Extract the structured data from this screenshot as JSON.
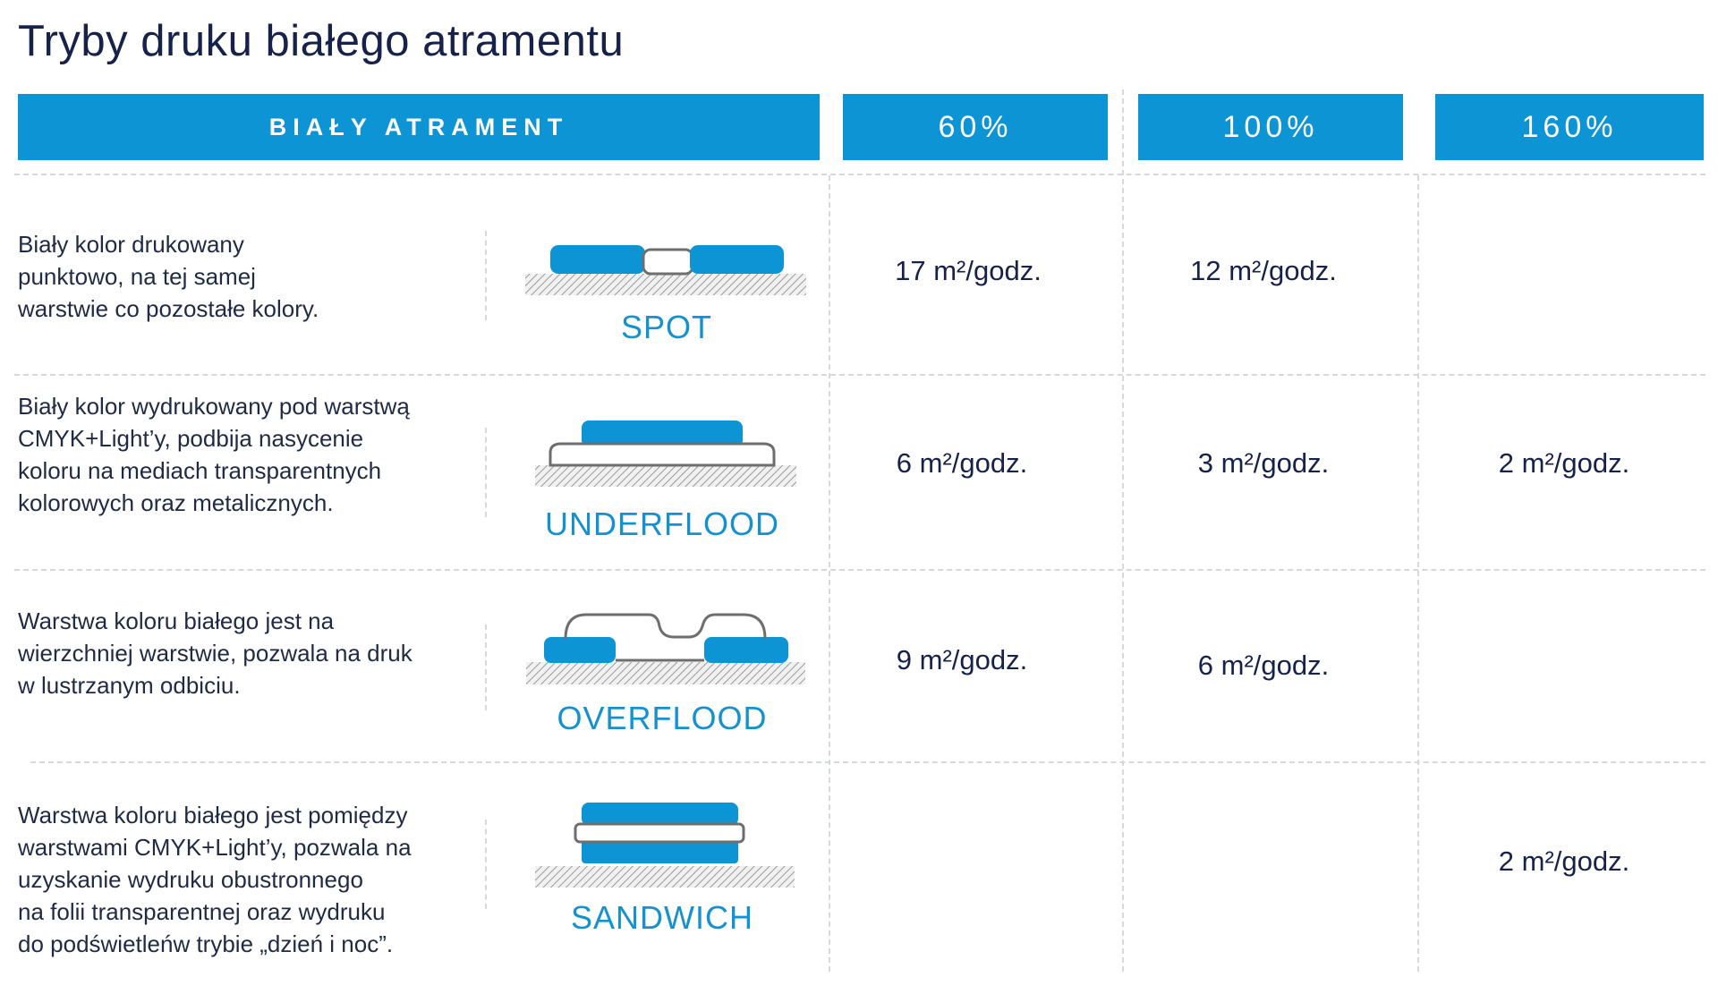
{
  "title": "Tryby druku białego atramentu",
  "header": {
    "main_label": "BIAŁY ATRAMENT",
    "columns": [
      "60%",
      "100%",
      "160%"
    ]
  },
  "rows": [
    {
      "mode": "SPOT",
      "description": [
        "Biały kolor drukowany",
        "punktowo, na tej samej",
        "warstwie co pozostałe kolory."
      ],
      "speeds": [
        "17 m²/godz.",
        "12 m²/godz.",
        ""
      ]
    },
    {
      "mode": "UNDERFLOOD",
      "description": [
        "Biały kolor wydrukowany pod warstwą",
        "CMYK+Light’y, podbija nasycenie",
        "koloru na mediach transparentnych",
        "kolorowych oraz metalicznych."
      ],
      "speeds": [
        "6 m²/godz.",
        "3 m²/godz.",
        "2 m²/godz."
      ]
    },
    {
      "mode": "OVERFLOOD",
      "description": [
        "Warstwa koloru białego jest na",
        "wierzchniej warstwie, pozwala na druk",
        "w lustrzanym odbiciu."
      ],
      "speeds": [
        "9 m²/godz.",
        "6 m²/godz.",
        ""
      ]
    },
    {
      "mode": "SANDWICH",
      "description": [
        "Warstwa koloru białego jest pomiędzy",
        "warstwami CMYK+Light’y, pozwala na",
        "uzyskanie wydruku obustronnego",
        "na folii transparentnej oraz wydruku",
        "do podświetleńw trybie „dzień i noc”."
      ],
      "speeds": [
        "",
        "",
        "2 m²/godz."
      ]
    }
  ],
  "colors": {
    "accent": "#0d94d4",
    "title": "#16224a",
    "mode_label": "#1591d0",
    "white_ink_outline": "#6e6e6e",
    "substrate_hatch": "#9a9a9a"
  }
}
